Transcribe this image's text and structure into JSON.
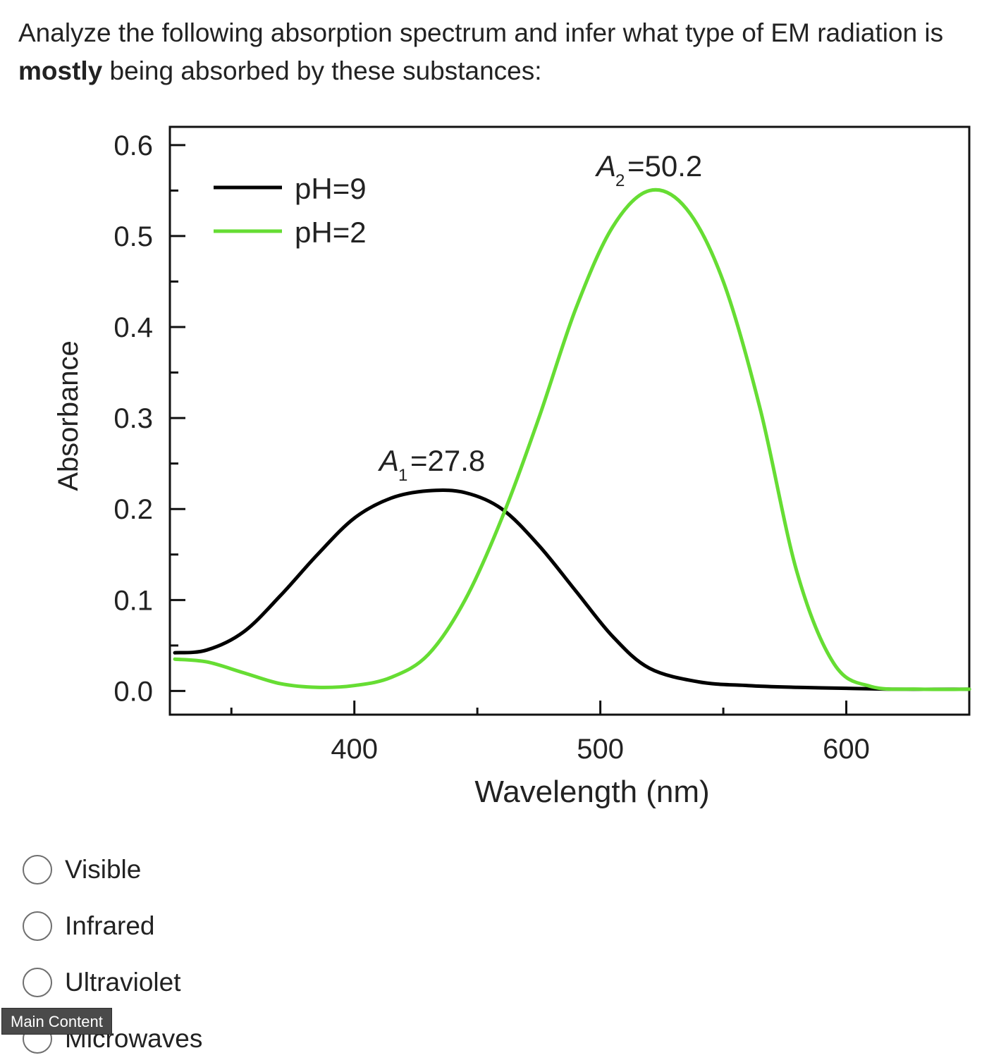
{
  "question": {
    "part1": "Analyze the following absorption spectrum and infer what type of EM radiation is",
    "bold": "mostly",
    "part2": "being absorbed by these substances:"
  },
  "chart_data": {
    "type": "line",
    "title": "",
    "xlabel": "Wavelength (nm)",
    "ylabel": "Absorbance",
    "xlim": [
      325,
      650
    ],
    "ylim": [
      -0.026,
      0.62
    ],
    "xticks": [
      400,
      500,
      600
    ],
    "yticks": [
      0.0,
      0.1,
      0.2,
      0.3,
      0.4,
      0.5,
      0.6
    ],
    "x_tick_labels": [
      "400",
      "500",
      "600"
    ],
    "y_tick_labels": [
      "0.0",
      "0.1",
      "0.2",
      "0.3",
      "0.4",
      "0.5",
      "0.6"
    ],
    "legend_position": "top-left",
    "grid": false,
    "series": [
      {
        "name": "pH=9",
        "color": "#000000",
        "x": [
          327,
          340,
          355,
          370,
          385,
          400,
          415,
          430,
          445,
          460,
          475,
          490,
          505,
          520,
          540,
          560,
          580,
          600,
          620,
          650
        ],
        "y": [
          0.042,
          0.045,
          0.065,
          0.105,
          0.15,
          0.19,
          0.212,
          0.22,
          0.218,
          0.2,
          0.16,
          0.11,
          0.06,
          0.025,
          0.01,
          0.006,
          0.004,
          0.003,
          0.002,
          0.002
        ]
      },
      {
        "name": "pH=2",
        "color": "#66dd33",
        "x": [
          327,
          340,
          355,
          370,
          385,
          400,
          415,
          430,
          445,
          460,
          475,
          490,
          505,
          520,
          535,
          550,
          565,
          580,
          595,
          610,
          630,
          650
        ],
        "y": [
          0.035,
          0.032,
          0.02,
          0.008,
          0.004,
          0.006,
          0.015,
          0.04,
          0.1,
          0.19,
          0.3,
          0.42,
          0.51,
          0.55,
          0.53,
          0.45,
          0.31,
          0.13,
          0.03,
          0.005,
          0.002,
          0.002
        ]
      }
    ],
    "annotations": [
      {
        "text": "A",
        "subscript": "1",
        "value": "=27.8",
        "x": 430,
        "y": 0.225
      },
      {
        "text": "A",
        "subscript": "2",
        "value": "=50.2",
        "x": 520,
        "y": 0.555
      }
    ]
  },
  "options": [
    {
      "label": "Visible"
    },
    {
      "label": "Infrared"
    },
    {
      "label": "Ultraviolet"
    },
    {
      "label": "Microwaves"
    }
  ],
  "tooltip": "Main Content"
}
